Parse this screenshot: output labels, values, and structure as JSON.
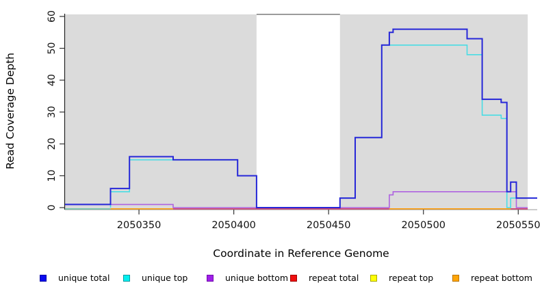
{
  "figure": {
    "xlabel": "Coordinate in Reference Genome",
    "ylabel": "Read Coverage Depth"
  },
  "chart_data": {
    "type": "line",
    "subtype": "step-coverage",
    "title": "",
    "xlabel": "Coordinate in Reference Genome",
    "ylabel": "Read Coverage Depth",
    "x_domain": [
      2050311,
      2050560
    ],
    "y_domain": [
      0,
      61
    ],
    "x_ticks": [
      2050350,
      2050400,
      2050450,
      2050500,
      2050550
    ],
    "y_ticks": [
      0,
      10,
      20,
      30,
      40,
      50,
      60
    ],
    "grid": false,
    "legend_position": "bottom",
    "plot_background": "#ffffff",
    "shaded_regions": [
      {
        "from": 2050311,
        "to": 2050412,
        "color": "#DBDBDB"
      },
      {
        "from": 2050456,
        "to": 2050555,
        "color": "#DBDBDB"
      }
    ],
    "gap_top_line": {
      "from": 2050412,
      "to": 2050456,
      "color": "#7A7A7A"
    },
    "baseline_segments": [
      {
        "from": 2050311,
        "to": 2050335,
        "color": "#72C6AE"
      },
      {
        "from": 2050335,
        "to": 2050368,
        "color": "#FF9C07"
      },
      {
        "from": 2050368,
        "to": 2050482,
        "color": "#D2416F"
      },
      {
        "from": 2050482,
        "to": 2050546,
        "color": "#FF9C07"
      },
      {
        "from": 2050546,
        "to": 2050555,
        "color": "#D2416F"
      }
    ],
    "series": [
      {
        "name": "repeat total",
        "color": "#E03030",
        "draw": false,
        "end": 2050560,
        "points": [
          [
            2050311,
            0
          ]
        ]
      },
      {
        "name": "repeat top",
        "color": "#FFE000",
        "draw": false,
        "end": 2050560,
        "points": [
          [
            2050311,
            0
          ]
        ]
      },
      {
        "name": "repeat bottom",
        "color": "#FF9C07",
        "draw": false,
        "end": 2050560,
        "points": [
          [
            2050311,
            0
          ]
        ]
      },
      {
        "name": "unique bottom",
        "color": "#AE63E0",
        "draw": true,
        "width": 1.6,
        "end": 2050555,
        "points": [
          [
            2050311,
            1
          ],
          [
            2050368,
            0
          ],
          [
            2050482,
            4
          ],
          [
            2050484,
            5
          ],
          [
            2050549,
            0
          ]
        ]
      },
      {
        "name": "unique top",
        "color": "#49DCE4",
        "draw": true,
        "width": 1.6,
        "end": 2050560,
        "points": [
          [
            2050335,
            0
          ],
          [
            2050335,
            5
          ],
          [
            2050345,
            15
          ],
          [
            2050402,
            10
          ],
          [
            2050412,
            0
          ],
          [
            2050456,
            3
          ],
          [
            2050464,
            22
          ],
          [
            2050478,
            51
          ],
          [
            2050523,
            48
          ],
          [
            2050531,
            29
          ],
          [
            2050541,
            28
          ],
          [
            2050544,
            0
          ],
          [
            2050546,
            3
          ]
        ]
      },
      {
        "name": "unique total",
        "color": "#2727D8",
        "draw": true,
        "width": 2,
        "end": 2050560,
        "points": [
          [
            2050311,
            1
          ],
          [
            2050335,
            6
          ],
          [
            2050345,
            16
          ],
          [
            2050368,
            15
          ],
          [
            2050402,
            10
          ],
          [
            2050412,
            0
          ],
          [
            2050456,
            3
          ],
          [
            2050464,
            22
          ],
          [
            2050478,
            51
          ],
          [
            2050482,
            55
          ],
          [
            2050484,
            56
          ],
          [
            2050523,
            53
          ],
          [
            2050531,
            34
          ],
          [
            2050541,
            33
          ],
          [
            2050544,
            5
          ],
          [
            2050546,
            8
          ],
          [
            2050549,
            3
          ]
        ]
      }
    ],
    "legend": [
      {
        "label": "unique total",
        "color": "#0B0BEF",
        "border": "#0000A6"
      },
      {
        "label": "unique top",
        "color": "#00EFEF",
        "border": "#0A9AA0"
      },
      {
        "label": "unique bottom",
        "color": "#9F1FE8",
        "border": "#7209AE"
      },
      {
        "label": "repeat total",
        "color": "#EF1010",
        "border": "#A00000"
      },
      {
        "label": "repeat top",
        "color": "#FFFF05",
        "border": "#A8A800"
      },
      {
        "label": "repeat bottom",
        "color": "#FFA508",
        "border": "#B97404"
      }
    ]
  }
}
